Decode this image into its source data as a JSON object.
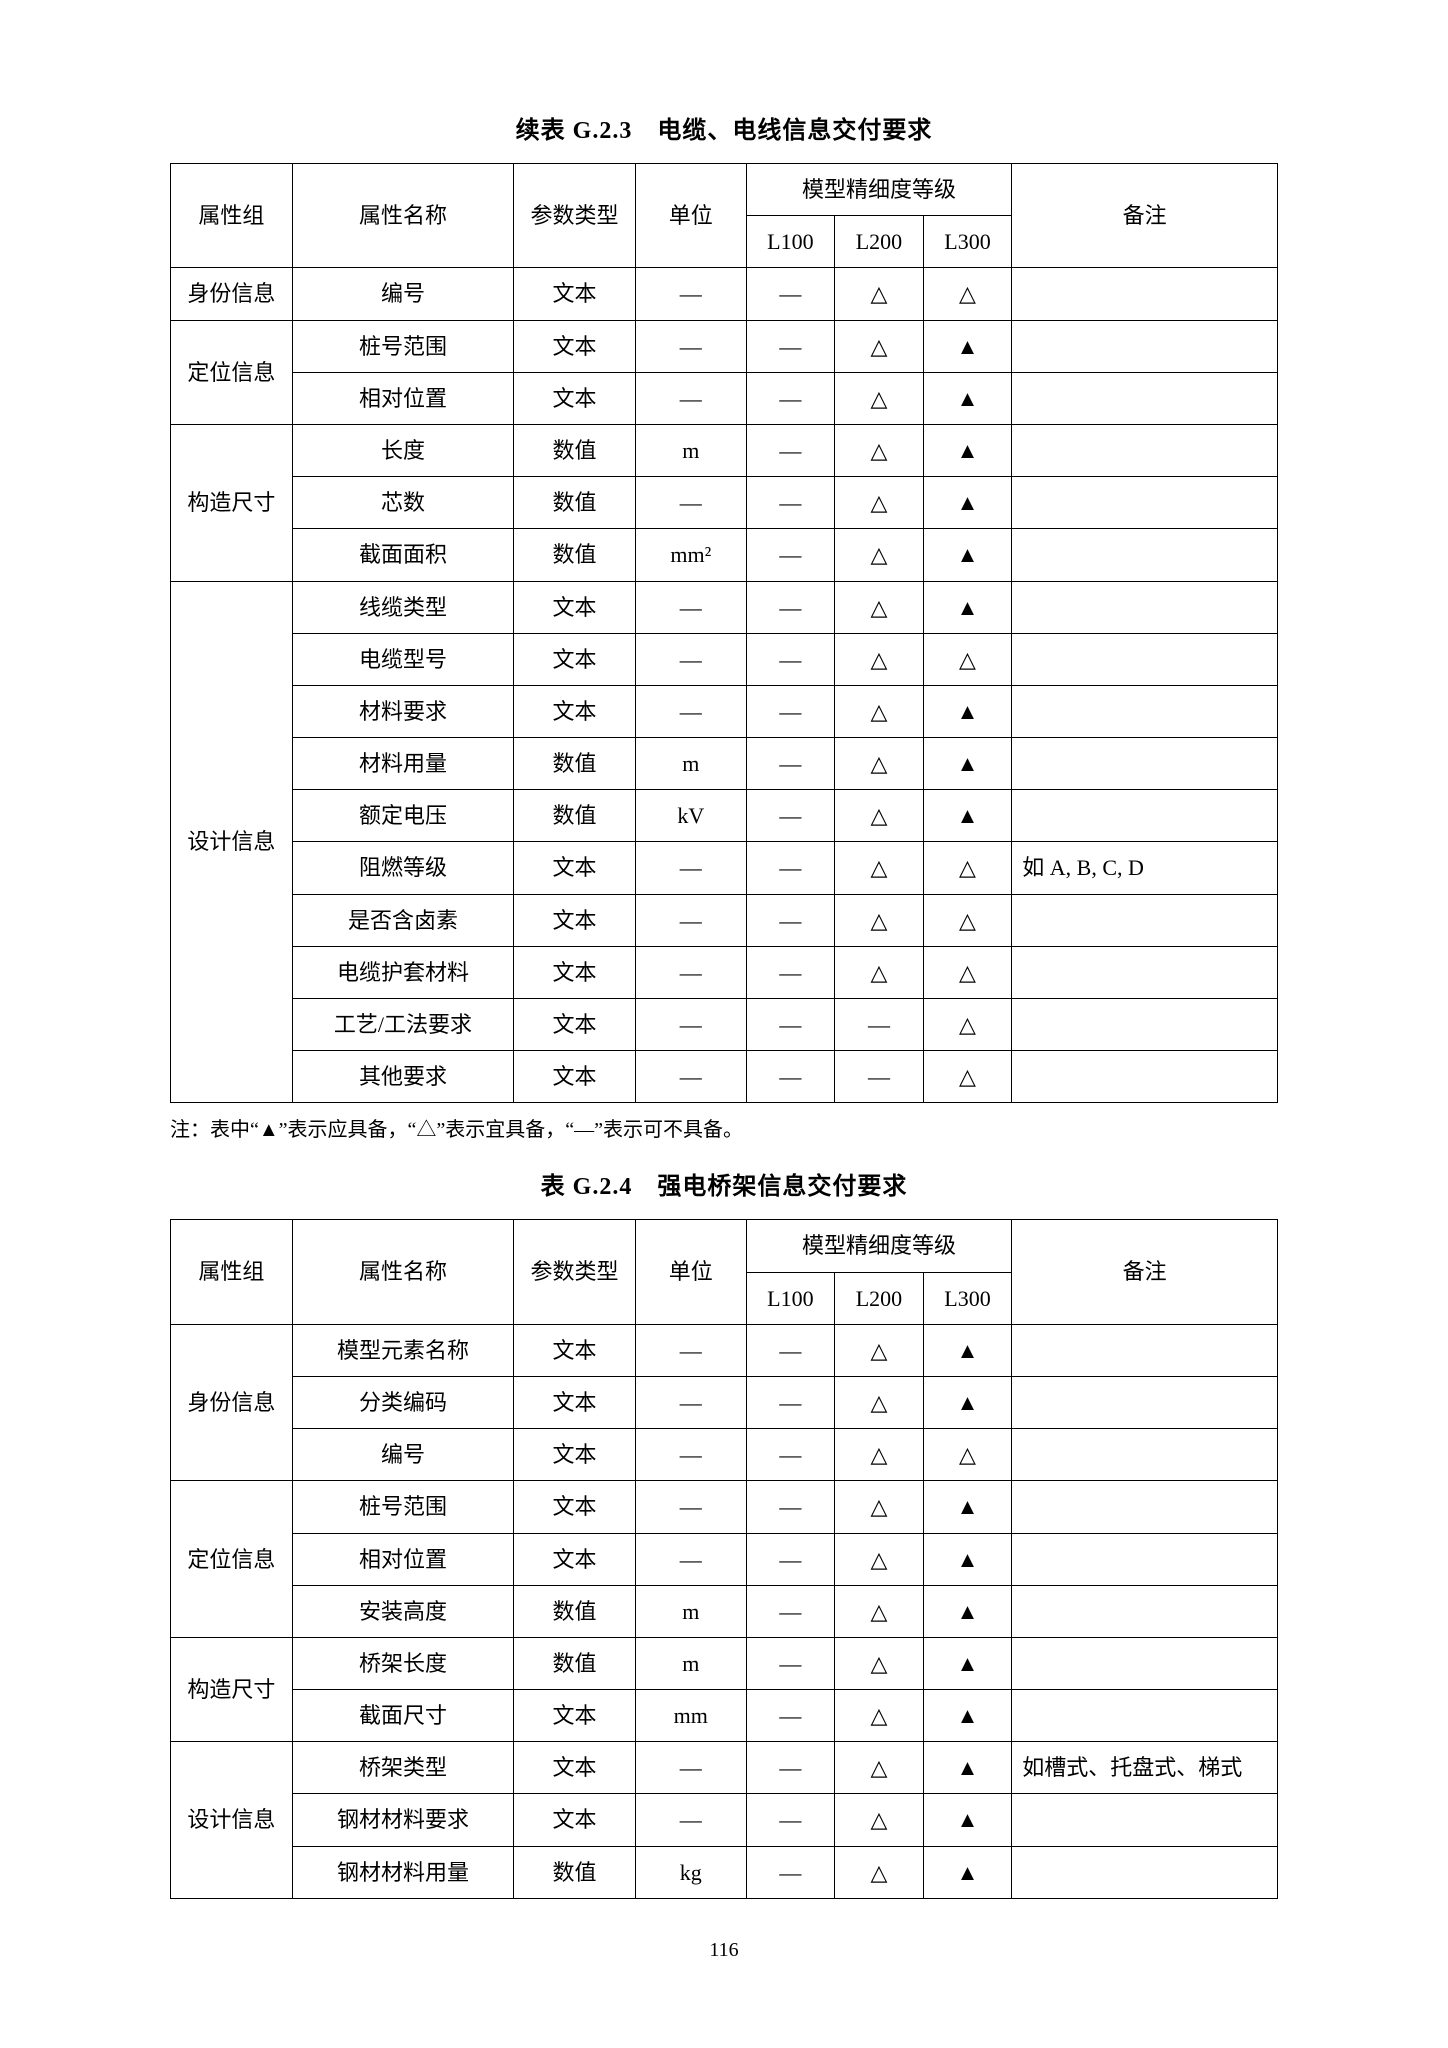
{
  "symbols": {
    "dash": "—",
    "hollow": "△",
    "solid": "▲"
  },
  "page_number": "116",
  "footnote": "注：表中“▲”表示应具备，“△”表示宜具备，“—”表示可不具备。",
  "table1": {
    "title": "续表 G.2.3　电缆、电线信息交付要求",
    "headers": {
      "group": "属性组",
      "attr": "属性名称",
      "ptype": "参数类型",
      "unit": "单位",
      "lod_header": "模型精细度等级",
      "l100": "L100",
      "l200": "L200",
      "l300": "L300",
      "remark": "备注"
    },
    "groups": [
      {
        "name": "身份信息",
        "rows": [
          {
            "attr": "编号",
            "ptype": "文本",
            "unit": "—",
            "l100": "—",
            "l200": "△",
            "l300": "△",
            "remark": ""
          }
        ]
      },
      {
        "name": "定位信息",
        "rows": [
          {
            "attr": "桩号范围",
            "ptype": "文本",
            "unit": "—",
            "l100": "—",
            "l200": "△",
            "l300": "▲",
            "remark": ""
          },
          {
            "attr": "相对位置",
            "ptype": "文本",
            "unit": "—",
            "l100": "—",
            "l200": "△",
            "l300": "▲",
            "remark": ""
          }
        ]
      },
      {
        "name": "构造尺寸",
        "rows": [
          {
            "attr": "长度",
            "ptype": "数值",
            "unit": "m",
            "l100": "—",
            "l200": "△",
            "l300": "▲",
            "remark": ""
          },
          {
            "attr": "芯数",
            "ptype": "数值",
            "unit": "—",
            "l100": "—",
            "l200": "△",
            "l300": "▲",
            "remark": ""
          },
          {
            "attr": "截面面积",
            "ptype": "数值",
            "unit": "mm²",
            "l100": "—",
            "l200": "△",
            "l300": "▲",
            "remark": ""
          }
        ]
      },
      {
        "name": "设计信息",
        "rows": [
          {
            "attr": "线缆类型",
            "ptype": "文本",
            "unit": "—",
            "l100": "—",
            "l200": "△",
            "l300": "▲",
            "remark": ""
          },
          {
            "attr": "电缆型号",
            "ptype": "文本",
            "unit": "—",
            "l100": "—",
            "l200": "△",
            "l300": "△",
            "remark": ""
          },
          {
            "attr": "材料要求",
            "ptype": "文本",
            "unit": "—",
            "l100": "—",
            "l200": "△",
            "l300": "▲",
            "remark": ""
          },
          {
            "attr": "材料用量",
            "ptype": "数值",
            "unit": "m",
            "l100": "—",
            "l200": "△",
            "l300": "▲",
            "remark": ""
          },
          {
            "attr": "额定电压",
            "ptype": "数值",
            "unit": "kV",
            "l100": "—",
            "l200": "△",
            "l300": "▲",
            "remark": ""
          },
          {
            "attr": "阻燃等级",
            "ptype": "文本",
            "unit": "—",
            "l100": "—",
            "l200": "△",
            "l300": "△",
            "remark": "如 A, B, C, D"
          },
          {
            "attr": "是否含卤素",
            "ptype": "文本",
            "unit": "—",
            "l100": "—",
            "l200": "△",
            "l300": "△",
            "remark": ""
          },
          {
            "attr": "电缆护套材料",
            "ptype": "文本",
            "unit": "—",
            "l100": "—",
            "l200": "△",
            "l300": "△",
            "remark": ""
          },
          {
            "attr": "工艺/工法要求",
            "ptype": "文本",
            "unit": "—",
            "l100": "—",
            "l200": "—",
            "l300": "△",
            "remark": ""
          },
          {
            "attr": "其他要求",
            "ptype": "文本",
            "unit": "—",
            "l100": "—",
            "l200": "—",
            "l300": "△",
            "remark": ""
          }
        ]
      }
    ]
  },
  "table2": {
    "title": "表 G.2.4　强电桥架信息交付要求",
    "headers": {
      "group": "属性组",
      "attr": "属性名称",
      "ptype": "参数类型",
      "unit": "单位",
      "lod_header": "模型精细度等级",
      "l100": "L100",
      "l200": "L200",
      "l300": "L300",
      "remark": "备注"
    },
    "groups": [
      {
        "name": "身份信息",
        "rows": [
          {
            "attr": "模型元素名称",
            "ptype": "文本",
            "unit": "—",
            "l100": "—",
            "l200": "△",
            "l300": "▲",
            "remark": ""
          },
          {
            "attr": "分类编码",
            "ptype": "文本",
            "unit": "—",
            "l100": "—",
            "l200": "△",
            "l300": "▲",
            "remark": ""
          },
          {
            "attr": "编号",
            "ptype": "文本",
            "unit": "—",
            "l100": "—",
            "l200": "△",
            "l300": "△",
            "remark": ""
          }
        ]
      },
      {
        "name": "定位信息",
        "rows": [
          {
            "attr": "桩号范围",
            "ptype": "文本",
            "unit": "—",
            "l100": "—",
            "l200": "△",
            "l300": "▲",
            "remark": ""
          },
          {
            "attr": "相对位置",
            "ptype": "文本",
            "unit": "—",
            "l100": "—",
            "l200": "△",
            "l300": "▲",
            "remark": ""
          },
          {
            "attr": "安装高度",
            "ptype": "数值",
            "unit": "m",
            "l100": "—",
            "l200": "△",
            "l300": "▲",
            "remark": ""
          }
        ]
      },
      {
        "name": "构造尺寸",
        "rows": [
          {
            "attr": "桥架长度",
            "ptype": "数值",
            "unit": "m",
            "l100": "—",
            "l200": "△",
            "l300": "▲",
            "remark": ""
          },
          {
            "attr": "截面尺寸",
            "ptype": "文本",
            "unit": "mm",
            "l100": "—",
            "l200": "△",
            "l300": "▲",
            "remark": ""
          }
        ]
      },
      {
        "name": "设计信息",
        "rows": [
          {
            "attr": "桥架类型",
            "ptype": "文本",
            "unit": "—",
            "l100": "—",
            "l200": "△",
            "l300": "▲",
            "remark": "如槽式、托盘式、梯式"
          },
          {
            "attr": "钢材材料要求",
            "ptype": "文本",
            "unit": "—",
            "l100": "—",
            "l200": "△",
            "l300": "▲",
            "remark": ""
          },
          {
            "attr": "钢材材料用量",
            "ptype": "数值",
            "unit": "kg",
            "l100": "—",
            "l200": "△",
            "l300": "▲",
            "remark": ""
          }
        ]
      }
    ]
  }
}
